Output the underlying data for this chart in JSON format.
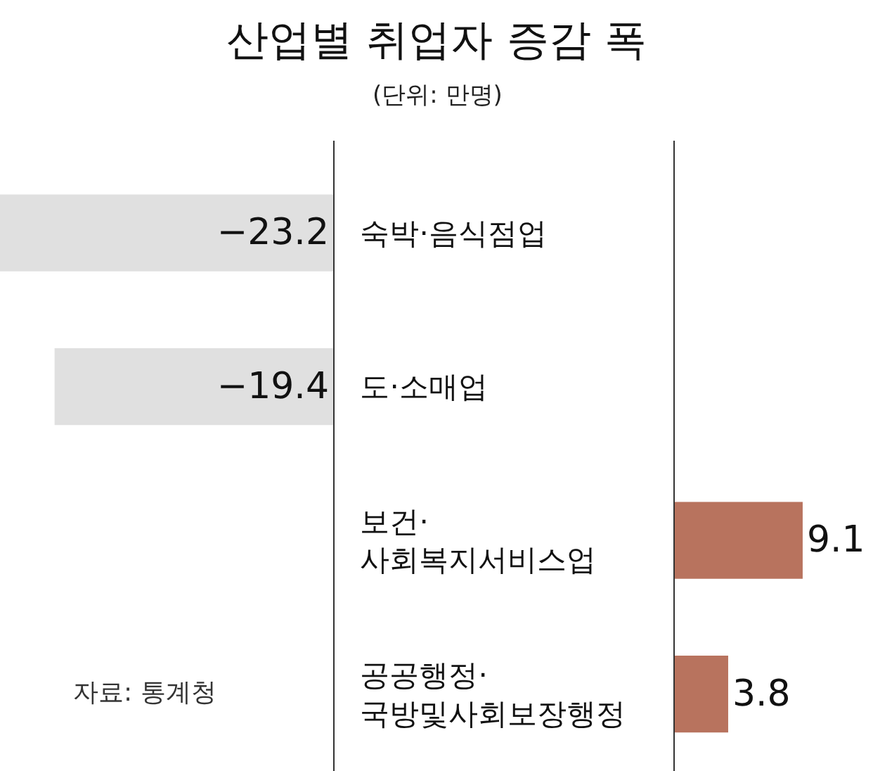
{
  "chart_data": [
    {
      "type": "bar",
      "orientation": "horizontal",
      "title": "산업별 취업자 증감 폭",
      "subtitle": "(단위: 만명)",
      "categories": [
        "숙박·음식점업",
        "도·소매업",
        "보건·\n사회복지서비스업",
        "공공행정·\n국방및사회보장행정"
      ],
      "values": [
        -23.2,
        -19.4,
        null,
        null
      ],
      "color": "#e0e0e0",
      "value_labels": [
        "−23.2",
        "−19.4",
        null,
        null
      ],
      "annotations": [
        "자료: 통계청"
      ],
      "legend": false,
      "grid": false
    },
    {
      "type": "bar",
      "orientation": "horizontal",
      "categories": [
        null,
        null,
        null,
        null
      ],
      "values": [
        null,
        null,
        9.1,
        3.8
      ],
      "color": "#b8735e",
      "data_labels": true,
      "legend": false,
      "grid": false
    }
  ]
}
